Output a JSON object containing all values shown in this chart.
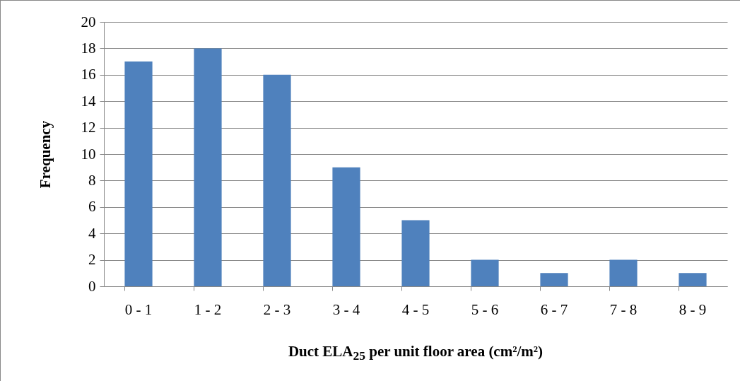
{
  "chart_data": {
    "type": "bar",
    "categories": [
      "0 - 1",
      "1 - 2",
      "2 - 3",
      "3 - 4",
      "4 - 5",
      "5 - 6",
      "6 - 7",
      "7 - 8",
      "8 - 9"
    ],
    "values": [
      17,
      18,
      16,
      9,
      5,
      2,
      1,
      2,
      1
    ],
    "color": "#4f81bd",
    "xlabel": "Duct ELA$_{25}$ per unit floor area (cm²/m²)",
    "ylabel": "Frequency",
    "ylim": [
      0,
      20
    ],
    "yticks": [
      0,
      2,
      4,
      6,
      8,
      10,
      12,
      14,
      16,
      18,
      20
    ],
    "grid": "y"
  }
}
